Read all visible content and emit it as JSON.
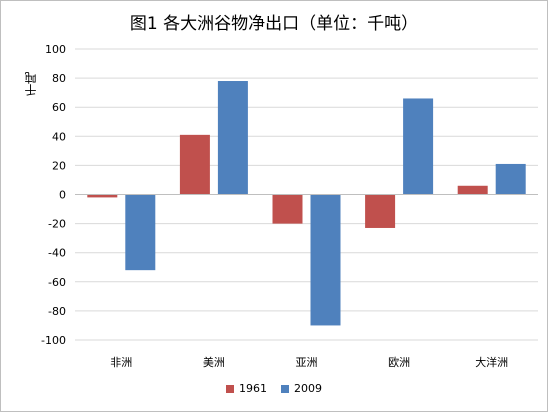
{
  "chart_data": {
    "type": "bar",
    "title": "图1 各大洲谷物净出口（单位：千吨）",
    "ylabel": "千吨",
    "xlabel": "",
    "categories": [
      "非洲",
      "美洲",
      "亚洲",
      "欧洲",
      "大洋洲"
    ],
    "series": [
      {
        "name": "1961",
        "color": "#c0504d",
        "values": [
          -2,
          41,
          -20,
          -23,
          6
        ]
      },
      {
        "name": "2009",
        "color": "#4f81bd",
        "values": [
          -52,
          78,
          -90,
          66,
          21
        ]
      }
    ],
    "ylim": [
      -100,
      100
    ],
    "yticks": [
      100,
      80,
      60,
      40,
      20,
      0,
      -20,
      -40,
      -60,
      -80,
      -100
    ],
    "ytick_labels": [
      "100",
      "80",
      "60",
      "40",
      "20",
      "0",
      "-20",
      "-40",
      "-60",
      "-80",
      "-100"
    ],
    "grid": true,
    "legend_position": "bottom"
  }
}
